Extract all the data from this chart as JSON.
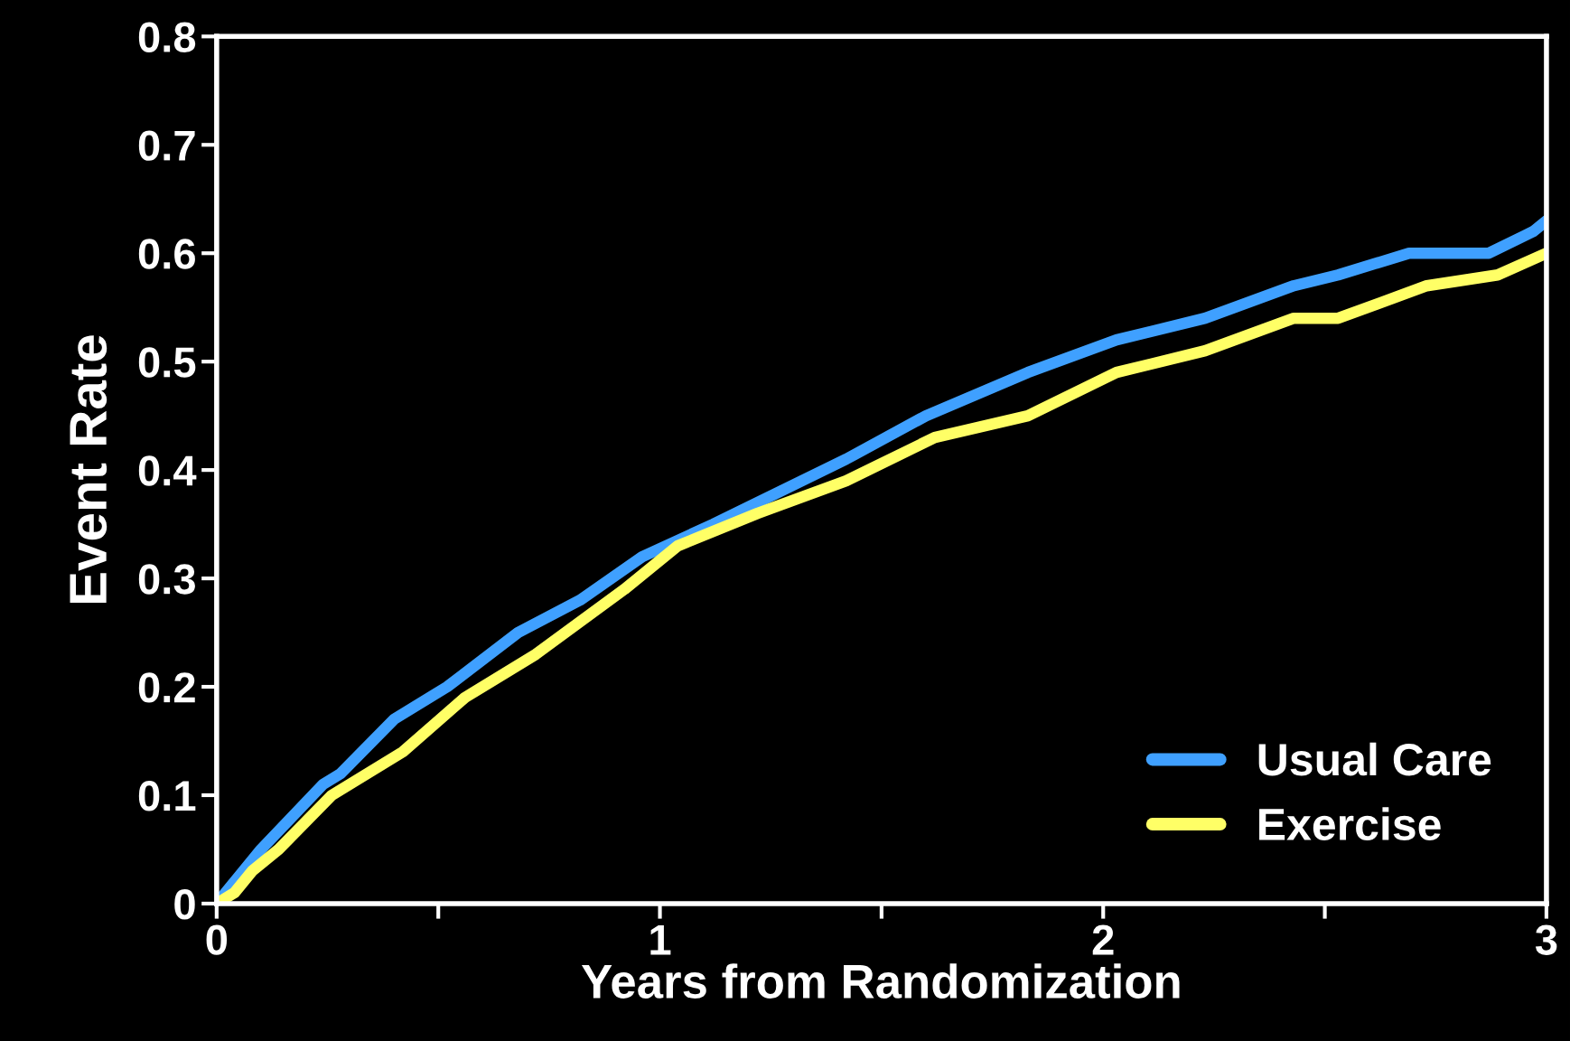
{
  "chart_data": {
    "type": "line",
    "xlabel": "Years from Randomization",
    "ylabel": "Event Rate",
    "xlim": [
      0,
      3
    ],
    "ylim": [
      0,
      0.8
    ],
    "xticks": [
      0,
      {
        "value": 0.5,
        "label": null
      },
      1,
      {
        "value": 1.5,
        "label": null
      },
      2,
      {
        "value": 2.5,
        "label": null
      },
      3
    ],
    "yticks": [
      0,
      0.1,
      0.2,
      0.3,
      0.4,
      0.5,
      0.6,
      0.7,
      0.8
    ],
    "grid": false,
    "legend": "bottom right",
    "line_style": "solid",
    "series": [
      {
        "name": "Usual Care",
        "color": "#3fa0ff",
        "x": [
          0,
          0.1,
          0.24,
          0.28,
          0.4,
          0.52,
          0.68,
          0.82,
          0.96,
          1.12,
          1.32,
          1.42,
          1.6,
          1.83,
          2.03,
          2.23,
          2.43,
          2.53,
          2.69,
          2.87,
          2.97,
          3.0
        ],
        "values": [
          0,
          0.05,
          0.11,
          0.12,
          0.17,
          0.2,
          0.25,
          0.28,
          0.32,
          0.35,
          0.39,
          0.41,
          0.45,
          0.49,
          0.52,
          0.54,
          0.57,
          0.58,
          0.6,
          0.6,
          0.62,
          0.63
        ]
      },
      {
        "name": "Exercise",
        "color": "#ffff66",
        "x": [
          0,
          0.04,
          0.08,
          0.14,
          0.26,
          0.42,
          0.56,
          0.72,
          0.92,
          1.04,
          1.22,
          1.42,
          1.62,
          1.83,
          2.03,
          2.23,
          2.43,
          2.53,
          2.73,
          2.89,
          3.0
        ],
        "values": [
          0,
          0.01,
          0.03,
          0.05,
          0.1,
          0.14,
          0.19,
          0.23,
          0.29,
          0.33,
          0.36,
          0.39,
          0.43,
          0.45,
          0.49,
          0.51,
          0.54,
          0.54,
          0.57,
          0.58,
          0.6
        ]
      }
    ]
  }
}
